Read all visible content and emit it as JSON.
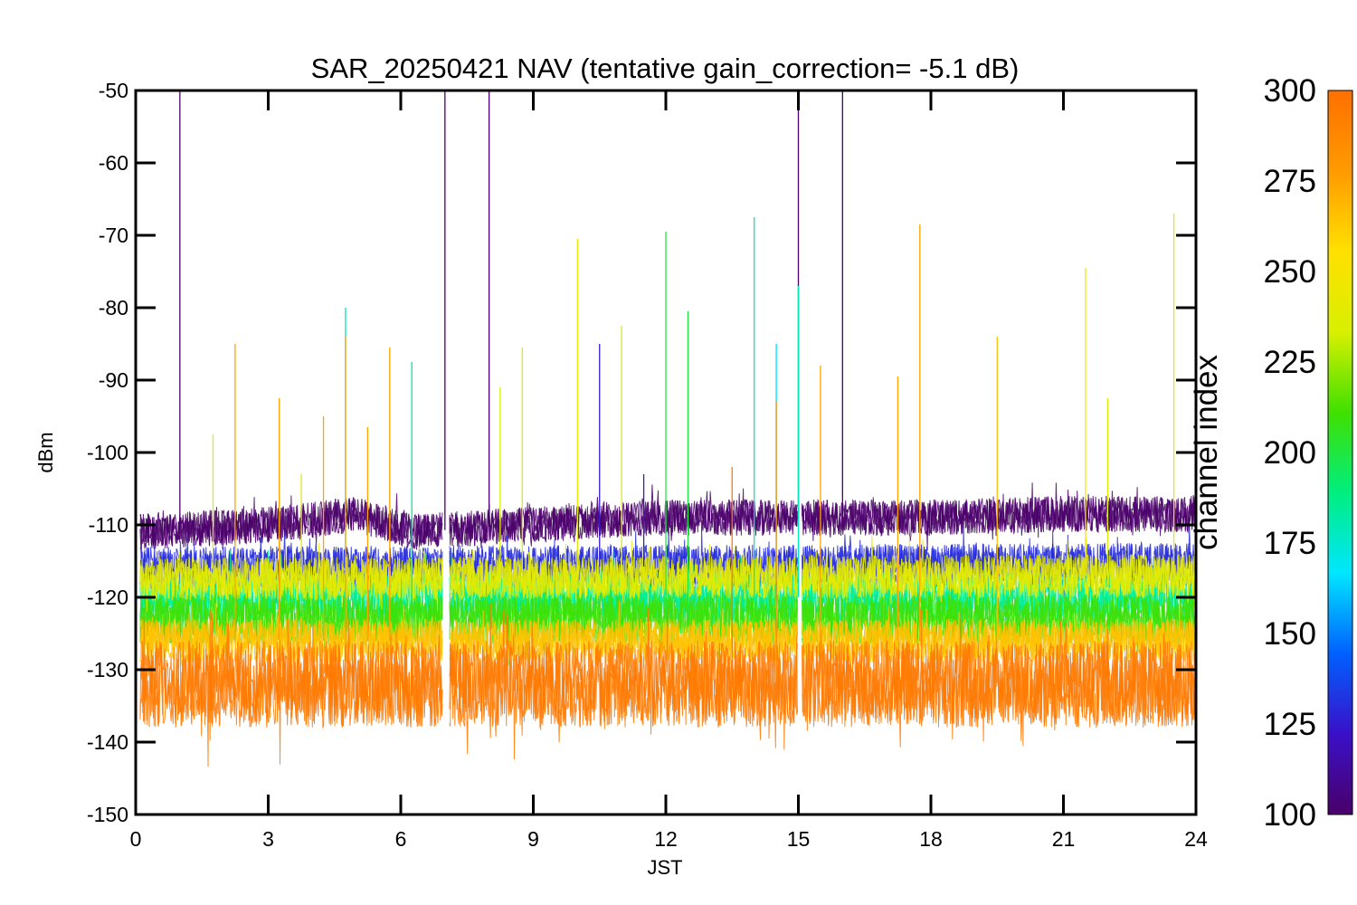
{
  "chart_data": {
    "type": "line",
    "title": "SAR_20250421 NAV (tentative gain_correction= -5.1 dB)",
    "xlabel": "JST",
    "ylabel": "dBm",
    "xlim": [
      0,
      24
    ],
    "ylim": [
      -150,
      -50
    ],
    "x_ticks": [
      "0",
      "3",
      "6",
      "9",
      "12",
      "15",
      "18",
      "21",
      "24"
    ],
    "y_ticks": [
      "-50",
      "-60",
      "-70",
      "-80",
      "-90",
      "-100",
      "-110",
      "-120",
      "-130",
      "-140",
      "-150"
    ],
    "grid": false,
    "data_gaps_jst": [
      [
        6.95,
        7.1
      ],
      [
        14.98,
        15.08
      ]
    ],
    "colorbar": {
      "label": "channel index",
      "range": [
        100,
        300
      ],
      "ticks": [
        "100",
        "125",
        "150",
        "175",
        "200",
        "225",
        "250",
        "275",
        "300"
      ],
      "colormap": [
        "#4a006a",
        "#3a10c8",
        "#0060ff",
        "#00e6ff",
        "#00ee80",
        "#40e000",
        "#d8f000",
        "#ffe000",
        "#ff9a00",
        "#ff7000"
      ]
    },
    "bands": [
      {
        "channel": 100,
        "color": "#4a006a",
        "y_center_by_hour": {
          "0": -111,
          "3": -110,
          "5": -108.5,
          "6.3": -111,
          "7.5": -110.5,
          "10": -109.5,
          "12": -109,
          "15": -109,
          "18": -109,
          "21": -108.5,
          "24": -108.5
        },
        "spread_dBm": 5
      },
      {
        "channel": 130,
        "color": "#3a10c8",
        "y_center_by_hour": {
          "0": -116,
          "24": -115.5
        },
        "spread_dBm": 6
      },
      {
        "channel": 185,
        "color": "#00e6ff",
        "y_center_by_hour": {
          "0": -120,
          "24": -120
        },
        "spread_dBm": 7
      },
      {
        "channel": 210,
        "color": "#00ee80",
        "y_center_by_hour": {
          "0": -123,
          "24": -123
        },
        "spread_dBm": 7
      },
      {
        "channel": 240,
        "color": "#40e000",
        "y_center_by_hour": {
          "0": -117.5,
          "24": -117
        },
        "spread_dBm": 6
      },
      {
        "channel": 265,
        "color": "#d8f000",
        "y_center_by_hour": {
          "0": -126,
          "24": -126
        },
        "spread_dBm": 6
      },
      {
        "channel": 295,
        "color": "#ff8000",
        "y_center_by_hour": {
          "0": -132,
          "24": -132
        },
        "spread_dBm": 12
      }
    ],
    "spikes": [
      {
        "x": 1.0,
        "y": -50,
        "channel": 100
      },
      {
        "x": 7.0,
        "y": -50,
        "channel": 100
      },
      {
        "x": 8.0,
        "y": -50,
        "channel": 100
      },
      {
        "x": 15.0,
        "y": -50,
        "channel": 100
      },
      {
        "x": 16.0,
        "y": -50,
        "channel": 100
      },
      {
        "x": 1.75,
        "y": -97.5,
        "channel": 235
      },
      {
        "x": 2.25,
        "y": -85,
        "channel": 275
      },
      {
        "x": 3.25,
        "y": -92.5,
        "channel": 275
      },
      {
        "x": 3.75,
        "y": -103,
        "channel": 240
      },
      {
        "x": 4.25,
        "y": -95,
        "channel": 275
      },
      {
        "x": 4.75,
        "y": -80,
        "channel": 180
      },
      {
        "x": 4.75,
        "y": -84,
        "channel": 275
      },
      {
        "x": 5.25,
        "y": -96.5,
        "channel": 275
      },
      {
        "x": 5.75,
        "y": -85.5,
        "channel": 275
      },
      {
        "x": 6.25,
        "y": -87.5,
        "channel": 185
      },
      {
        "x": 8.25,
        "y": -91,
        "channel": 235
      },
      {
        "x": 8.75,
        "y": -85.5,
        "channel": 235
      },
      {
        "x": 10.0,
        "y": -70.5,
        "channel": 240
      },
      {
        "x": 10.5,
        "y": -85,
        "channel": 125
      },
      {
        "x": 11.0,
        "y": -82.5,
        "channel": 235
      },
      {
        "x": 11.5,
        "y": -103,
        "channel": 125
      },
      {
        "x": 12.0,
        "y": -69.5,
        "channel": 200
      },
      {
        "x": 12.5,
        "y": -80.5,
        "channel": 200
      },
      {
        "x": 13.5,
        "y": -102,
        "channel": 295
      },
      {
        "x": 14.0,
        "y": -67.5,
        "channel": 180
      },
      {
        "x": 14.5,
        "y": -85,
        "channel": 165
      },
      {
        "x": 14.5,
        "y": -93,
        "channel": 285
      },
      {
        "x": 15.0,
        "y": -77,
        "channel": 180
      },
      {
        "x": 15.5,
        "y": -88,
        "channel": 275
      },
      {
        "x": 17.25,
        "y": -89.5,
        "channel": 275
      },
      {
        "x": 17.75,
        "y": -68.5,
        "channel": 275
      },
      {
        "x": 19.5,
        "y": -84,
        "channel": 265
      },
      {
        "x": 21.5,
        "y": -74.5,
        "channel": 250
      },
      {
        "x": 22.0,
        "y": -92.5,
        "channel": 235
      },
      {
        "x": 23.5,
        "y": -67,
        "channel": 240
      }
    ]
  }
}
